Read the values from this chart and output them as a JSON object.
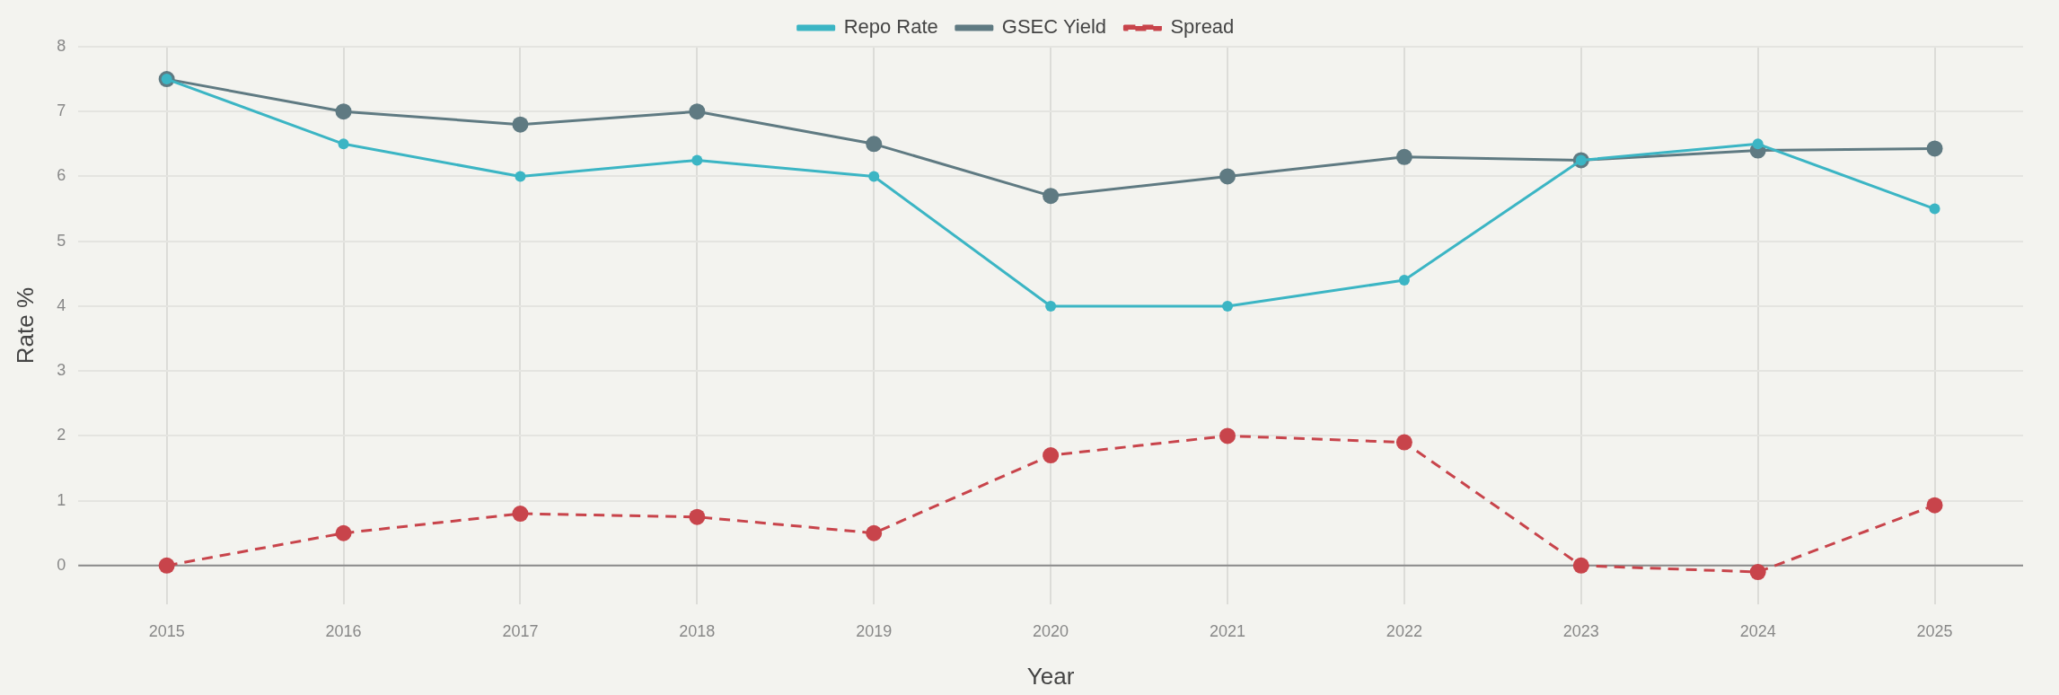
{
  "chart_data": {
    "type": "line",
    "xlabel": "Year",
    "ylabel": "Rate %",
    "categories": [
      "2015",
      "2016",
      "2017",
      "2018",
      "2019",
      "2020",
      "2021",
      "2022",
      "2023",
      "2024",
      "2025"
    ],
    "series": [
      {
        "name": "Repo Rate",
        "color": "#3bb5c4",
        "values": [
          7.5,
          6.5,
          6.0,
          6.25,
          6.0,
          4.0,
          4.0,
          4.4,
          6.25,
          6.5,
          5.5
        ]
      },
      {
        "name": "GSEC Yield",
        "color": "#5f7a82",
        "values": [
          7.5,
          7.0,
          6.8,
          7.0,
          6.5,
          5.7,
          6.0,
          6.3,
          6.25,
          6.4,
          6.43
        ]
      },
      {
        "name": "Spread",
        "color": "#c8444b",
        "line_style": "dashed",
        "values": [
          0,
          0.5,
          0.8,
          0.75,
          0.5,
          1.7,
          2.0,
          1.9,
          0,
          -0.1,
          0.93
        ]
      }
    ],
    "ylim": [
      -0.6,
      8
    ],
    "yticks": [
      0,
      1,
      2,
      3,
      4,
      5,
      6,
      7,
      8
    ],
    "ref_lines": [
      {
        "axis": "y",
        "value": 0,
        "color": "#8a8a8a"
      }
    ],
    "grid": true,
    "legend": "top",
    "marker": "circle",
    "line_style": "solid"
  }
}
